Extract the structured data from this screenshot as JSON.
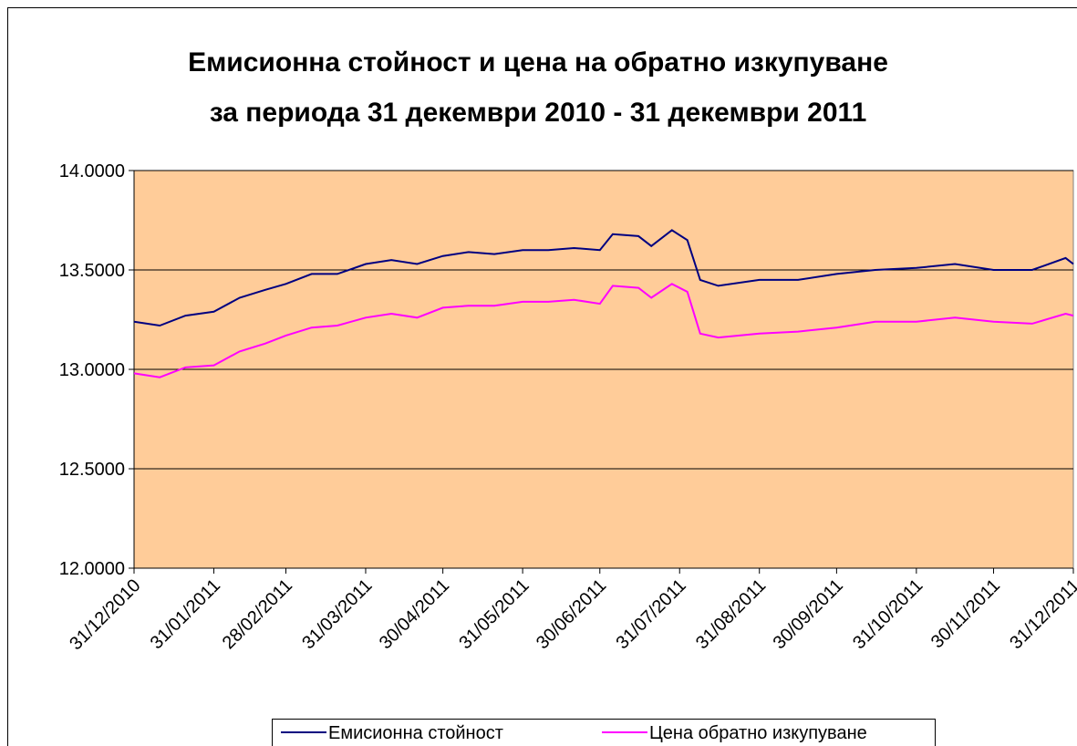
{
  "chart_data": {
    "type": "line",
    "title": [
      "Емисионна стойност и цена на обратно изкупуване",
      "за периода 31 декември 2010 - 31 декември 2011"
    ],
    "x": [
      "31/12/2010",
      "10/01/2011",
      "20/01/2011",
      "31/01/2011",
      "10/02/2011",
      "20/02/2011",
      "28/02/2011",
      "10/03/2011",
      "20/03/2011",
      "31/03/2011",
      "10/04/2011",
      "20/04/2011",
      "30/04/2011",
      "10/05/2011",
      "20/05/2011",
      "31/05/2011",
      "10/06/2011",
      "20/06/2011",
      "30/06/2011",
      "05/07/2011",
      "15/07/2011",
      "20/07/2011",
      "28/07/2011",
      "03/08/2011",
      "08/08/2011",
      "15/08/2011",
      "31/08/2011",
      "15/09/2011",
      "30/09/2011",
      "15/10/2011",
      "31/10/2011",
      "15/11/2011",
      "30/11/2011",
      "15/12/2011",
      "28/12/2011",
      "31/12/2011"
    ],
    "series": [
      {
        "name": "Емисионна стойност",
        "color": "#000080",
        "values": [
          13.24,
          13.22,
          13.27,
          13.29,
          13.36,
          13.4,
          13.43,
          13.48,
          13.48,
          13.53,
          13.55,
          13.53,
          13.57,
          13.59,
          13.58,
          13.6,
          13.6,
          13.61,
          13.6,
          13.68,
          13.67,
          13.62,
          13.7,
          13.65,
          13.45,
          13.42,
          13.45,
          13.45,
          13.48,
          13.5,
          13.51,
          13.53,
          13.5,
          13.5,
          13.56,
          13.53
        ]
      },
      {
        "name": "Цена обратно изкупуване",
        "color": "#ff00ff",
        "values": [
          12.98,
          12.96,
          13.01,
          13.02,
          13.09,
          13.13,
          13.17,
          13.21,
          13.22,
          13.26,
          13.28,
          13.26,
          13.31,
          13.32,
          13.32,
          13.34,
          13.34,
          13.35,
          13.33,
          13.42,
          13.41,
          13.36,
          13.43,
          13.39,
          13.18,
          13.16,
          13.18,
          13.19,
          13.21,
          13.24,
          13.24,
          13.26,
          13.24,
          13.23,
          13.28,
          13.27
        ]
      }
    ],
    "xlim": [
      "31/12/2010",
      "31/12/2011"
    ],
    "xticks": [
      "31/12/2010",
      "31/01/2011",
      "28/02/2011",
      "31/03/2011",
      "30/04/2011",
      "31/05/2011",
      "30/06/2011",
      "31/07/2011",
      "31/08/2011",
      "30/09/2011",
      "31/10/2011",
      "30/11/2011",
      "31/12/2011"
    ],
    "ylim": [
      12,
      14
    ],
    "yticks": [
      {
        "value": 12,
        "label": "12.0000"
      },
      {
        "value": 12.5,
        "label": "12.5000"
      },
      {
        "value": 13,
        "label": "13.0000"
      },
      {
        "value": 13.5,
        "label": "13.5000"
      },
      {
        "value": 14,
        "label": "14.0000"
      }
    ],
    "grid": true,
    "plot_background": "#ffcc99",
    "legend": "bottom"
  }
}
